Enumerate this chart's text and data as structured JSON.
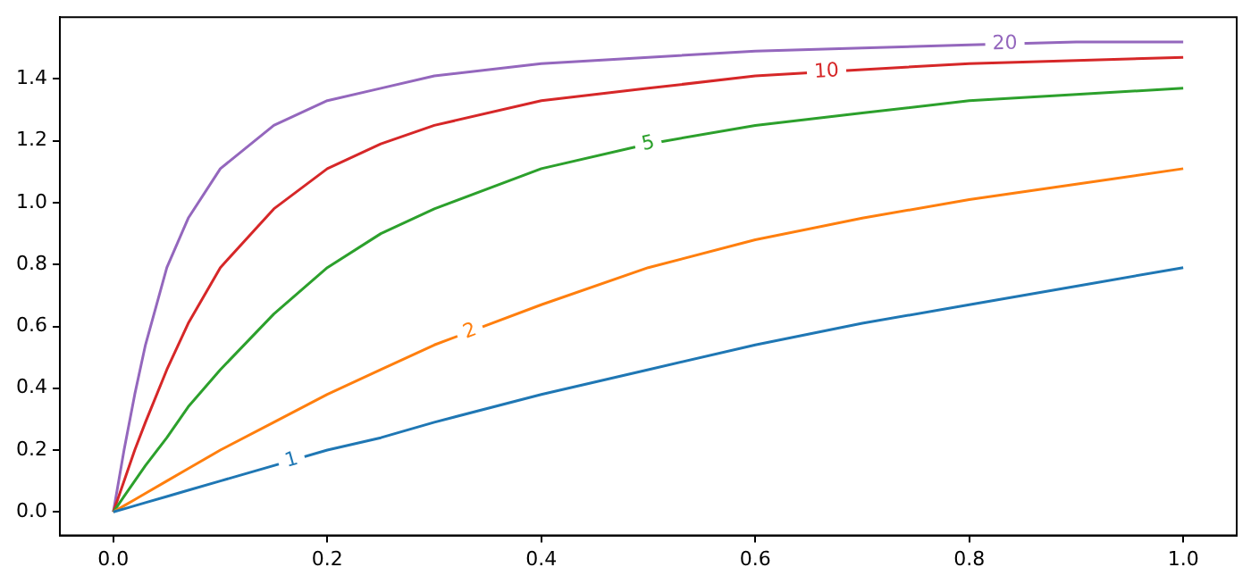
{
  "chart_data": {
    "type": "line",
    "xlim": [
      -0.05,
      1.05
    ],
    "xticks": [
      {
        "value": 0,
        "label": "0.0"
      },
      {
        "value": 0.2,
        "label": "0.2"
      },
      {
        "value": 0.4,
        "label": "0.4"
      },
      {
        "value": 0.6,
        "label": "0.6"
      },
      {
        "value": 0.8,
        "label": "0.8"
      },
      {
        "value": 1,
        "label": "1.0"
      }
    ],
    "ylim": [
      -0.076,
      1.6
    ],
    "yticks": [
      {
        "value": 0,
        "label": "0.0"
      },
      {
        "value": 0.2,
        "label": "0.2"
      },
      {
        "value": 0.4,
        "label": "0.4"
      },
      {
        "value": 0.6,
        "label": "0.6"
      },
      {
        "value": 0.8,
        "label": "0.8"
      },
      {
        "value": 1,
        "label": "1.0"
      },
      {
        "value": 1.2,
        "label": "1.2"
      },
      {
        "value": 1.4,
        "label": "1.4"
      }
    ],
    "grid": false,
    "legend": false,
    "marker": "none",
    "line_style": "solid",
    "x": [
      0,
      0.01,
      0.02,
      0.03,
      0.05,
      0.07,
      0.1,
      0.15,
      0.2,
      0.25,
      0.3,
      0.4,
      0.5,
      0.6,
      0.7,
      0.8,
      0.9,
      1
    ],
    "series": [
      {
        "name": "1",
        "color": "#1f77b4",
        "values": [
          0,
          0.01,
          0.02,
          0.03,
          0.05,
          0.07,
          0.1,
          0.15,
          0.2,
          0.24,
          0.29,
          0.38,
          0.46,
          0.54,
          0.61,
          0.67,
          0.73,
          0.79
        ]
      },
      {
        "name": "2",
        "color": "#ff7f0e",
        "values": [
          0,
          0.02,
          0.04,
          0.06,
          0.1,
          0.14,
          0.2,
          0.29,
          0.38,
          0.46,
          0.54,
          0.67,
          0.79,
          0.88,
          0.95,
          1.01,
          1.06,
          1.11
        ]
      },
      {
        "name": "5",
        "color": "#2ca02c",
        "values": [
          0,
          0.05,
          0.1,
          0.15,
          0.24,
          0.34,
          0.46,
          0.64,
          0.79,
          0.9,
          0.98,
          1.11,
          1.19,
          1.25,
          1.29,
          1.33,
          1.35,
          1.37
        ]
      },
      {
        "name": "10",
        "color": "#d62728",
        "values": [
          0,
          0.1,
          0.2,
          0.29,
          0.46,
          0.61,
          0.79,
          0.98,
          1.11,
          1.19,
          1.25,
          1.33,
          1.37,
          1.41,
          1.43,
          1.45,
          1.46,
          1.47
        ]
      },
      {
        "name": "20",
        "color": "#9467bd",
        "values": [
          0,
          0.2,
          0.38,
          0.54,
          0.79,
          0.95,
          1.11,
          1.25,
          1.33,
          1.37,
          1.41,
          1.45,
          1.47,
          1.49,
          1.5,
          1.51,
          1.52,
          1.52
        ]
      }
    ]
  }
}
